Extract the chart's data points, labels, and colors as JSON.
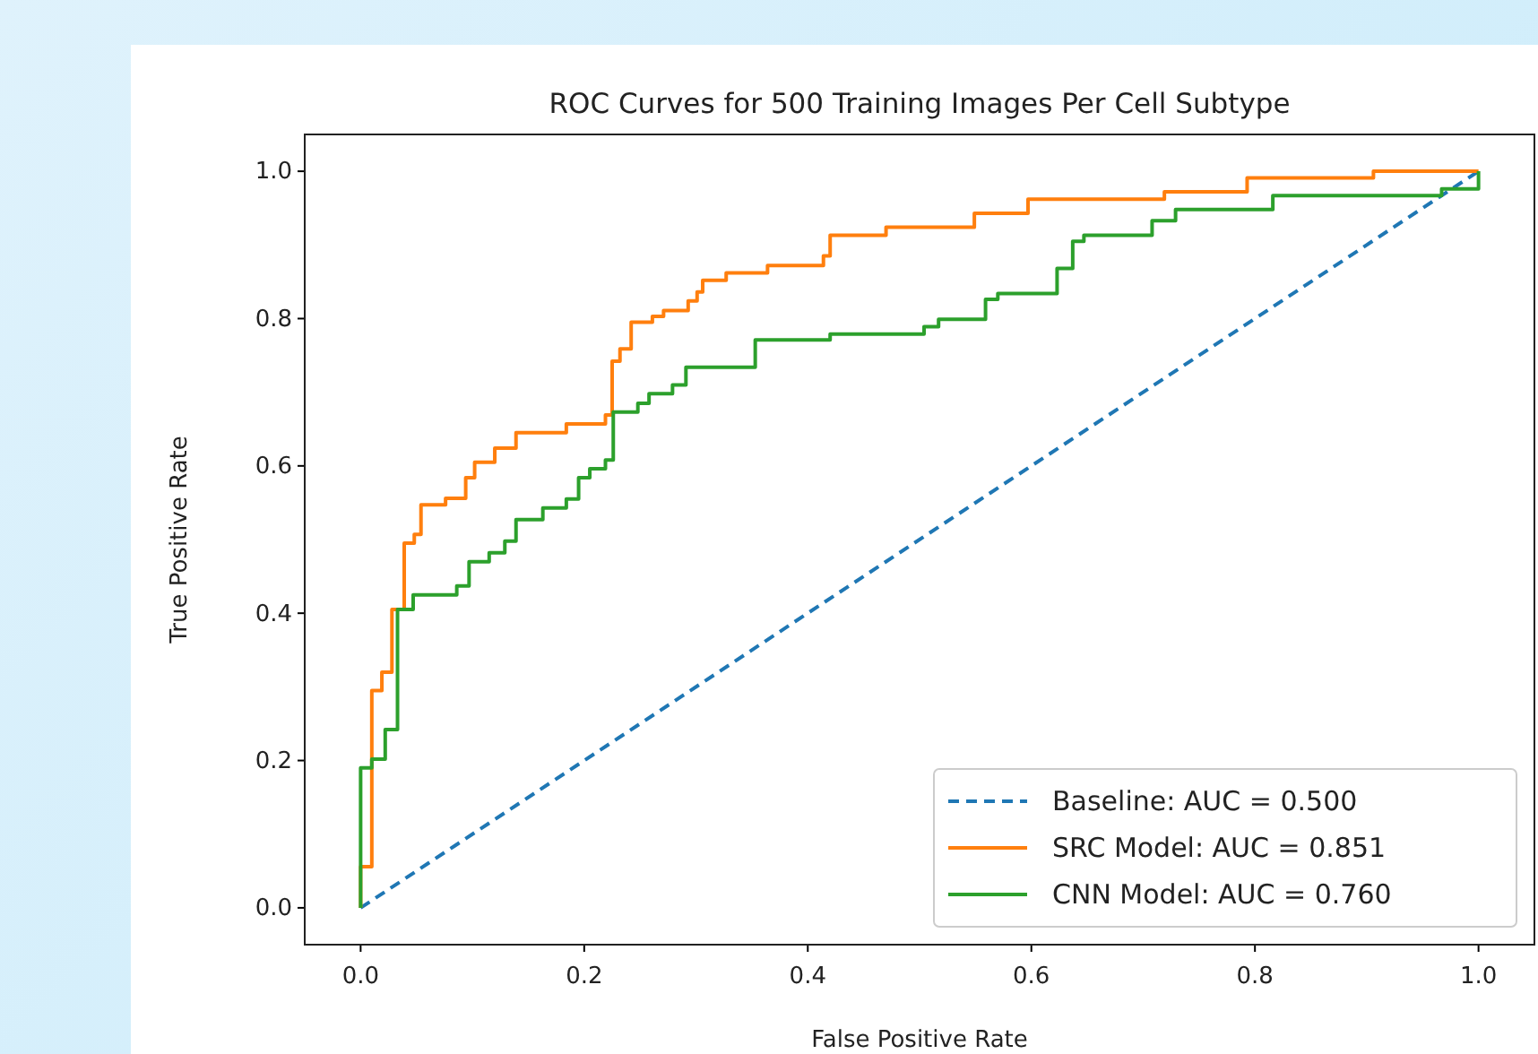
{
  "chart_data": {
    "type": "line",
    "title": "ROC Curves for 500 Training Images Per Cell Subtype",
    "xlabel": "False Positive Rate",
    "ylabel": "True Positive Rate",
    "xlim": [
      -0.05,
      1.05
    ],
    "ylim": [
      -0.05,
      1.05
    ],
    "xticks": [
      {
        "value": 0,
        "label": "0.0"
      },
      0.2,
      0.4,
      0.6,
      0.8,
      {
        "value": 1,
        "label": "1.0"
      }
    ],
    "yticks": [
      {
        "value": 0,
        "label": "0.0"
      },
      0.2,
      0.4,
      0.6,
      0.8,
      {
        "value": 1,
        "label": "1.0"
      }
    ],
    "legend": "bottom right",
    "grid": false,
    "series": [
      {
        "name": "Baseline: AUC = 0.500",
        "color": "#1f77b4",
        "line_style": "dashed",
        "x": [
          0,
          1
        ],
        "values": [
          0,
          1
        ]
      },
      {
        "name": "SRC Model: AUC = 0.851",
        "color": "#ff7f0e",
        "line_style": "solid",
        "x": [
          0,
          0,
          0.01,
          0.01,
          0.019,
          0.019,
          0.028,
          0.028,
          0.039,
          0.039,
          0.048,
          0.048,
          0.054,
          0.054,
          0.076,
          0.076,
          0.094,
          0.094,
          0.102,
          0.102,
          0.12,
          0.12,
          0.139,
          0.139,
          0.184,
          0.184,
          0.219,
          0.219,
          0.225,
          0.225,
          0.232,
          0.232,
          0.242,
          0.242,
          0.261,
          0.261,
          0.271,
          0.271,
          0.293,
          0.293,
          0.301,
          0.301,
          0.306,
          0.306,
          0.327,
          0.327,
          0.364,
          0.364,
          0.414,
          0.414,
          0.42,
          0.42,
          0.47,
          0.47,
          0.549,
          0.549,
          0.597,
          0.597,
          0.719,
          0.719,
          0.793,
          0.793,
          0.906,
          0.906,
          1.0
        ],
        "values": [
          0,
          0.056,
          0.056,
          0.295,
          0.295,
          0.32,
          0.32,
          0.405,
          0.405,
          0.495,
          0.495,
          0.507,
          0.507,
          0.547,
          0.547,
          0.556,
          0.556,
          0.584,
          0.584,
          0.605,
          0.605,
          0.624,
          0.624,
          0.645,
          0.645,
          0.657,
          0.657,
          0.669,
          0.669,
          0.742,
          0.742,
          0.759,
          0.759,
          0.795,
          0.795,
          0.803,
          0.803,
          0.811,
          0.811,
          0.824,
          0.824,
          0.836,
          0.836,
          0.852,
          0.852,
          0.862,
          0.862,
          0.872,
          0.872,
          0.885,
          0.885,
          0.913,
          0.913,
          0.924,
          0.924,
          0.943,
          0.943,
          0.962,
          0.962,
          0.972,
          0.972,
          0.991,
          0.991,
          1.0,
          1.0
        ]
      },
      {
        "name": "CNN Model: AUC = 0.760",
        "color": "#2ca02c",
        "line_style": "solid",
        "x": [
          0,
          0,
          0.01,
          0.01,
          0.022,
          0.022,
          0.033,
          0.033,
          0.047,
          0.047,
          0.086,
          0.086,
          0.097,
          0.097,
          0.115,
          0.115,
          0.129,
          0.129,
          0.139,
          0.139,
          0.163,
          0.163,
          0.184,
          0.184,
          0.195,
          0.195,
          0.205,
          0.205,
          0.219,
          0.219,
          0.226,
          0.226,
          0.248,
          0.248,
          0.258,
          0.258,
          0.279,
          0.279,
          0.291,
          0.291,
          0.353,
          0.353,
          0.42,
          0.42,
          0.504,
          0.504,
          0.517,
          0.517,
          0.559,
          0.559,
          0.57,
          0.57,
          0.623,
          0.623,
          0.637,
          0.637,
          0.647,
          0.647,
          0.708,
          0.708,
          0.729,
          0.729,
          0.816,
          0.816,
          0.967,
          0.967,
          1.0,
          1.0
        ],
        "values": [
          0,
          0.19,
          0.19,
          0.202,
          0.202,
          0.242,
          0.242,
          0.405,
          0.405,
          0.425,
          0.425,
          0.437,
          0.437,
          0.47,
          0.47,
          0.482,
          0.482,
          0.498,
          0.498,
          0.527,
          0.527,
          0.543,
          0.543,
          0.555,
          0.555,
          0.584,
          0.584,
          0.596,
          0.596,
          0.608,
          0.608,
          0.673,
          0.673,
          0.685,
          0.685,
          0.698,
          0.698,
          0.71,
          0.71,
          0.734,
          0.734,
          0.771,
          0.771,
          0.779,
          0.779,
          0.789,
          0.789,
          0.799,
          0.799,
          0.826,
          0.826,
          0.834,
          0.834,
          0.868,
          0.868,
          0.905,
          0.905,
          0.913,
          0.913,
          0.933,
          0.933,
          0.948,
          0.948,
          0.967,
          0.967,
          0.976,
          0.976,
          1.0
        ]
      }
    ]
  }
}
